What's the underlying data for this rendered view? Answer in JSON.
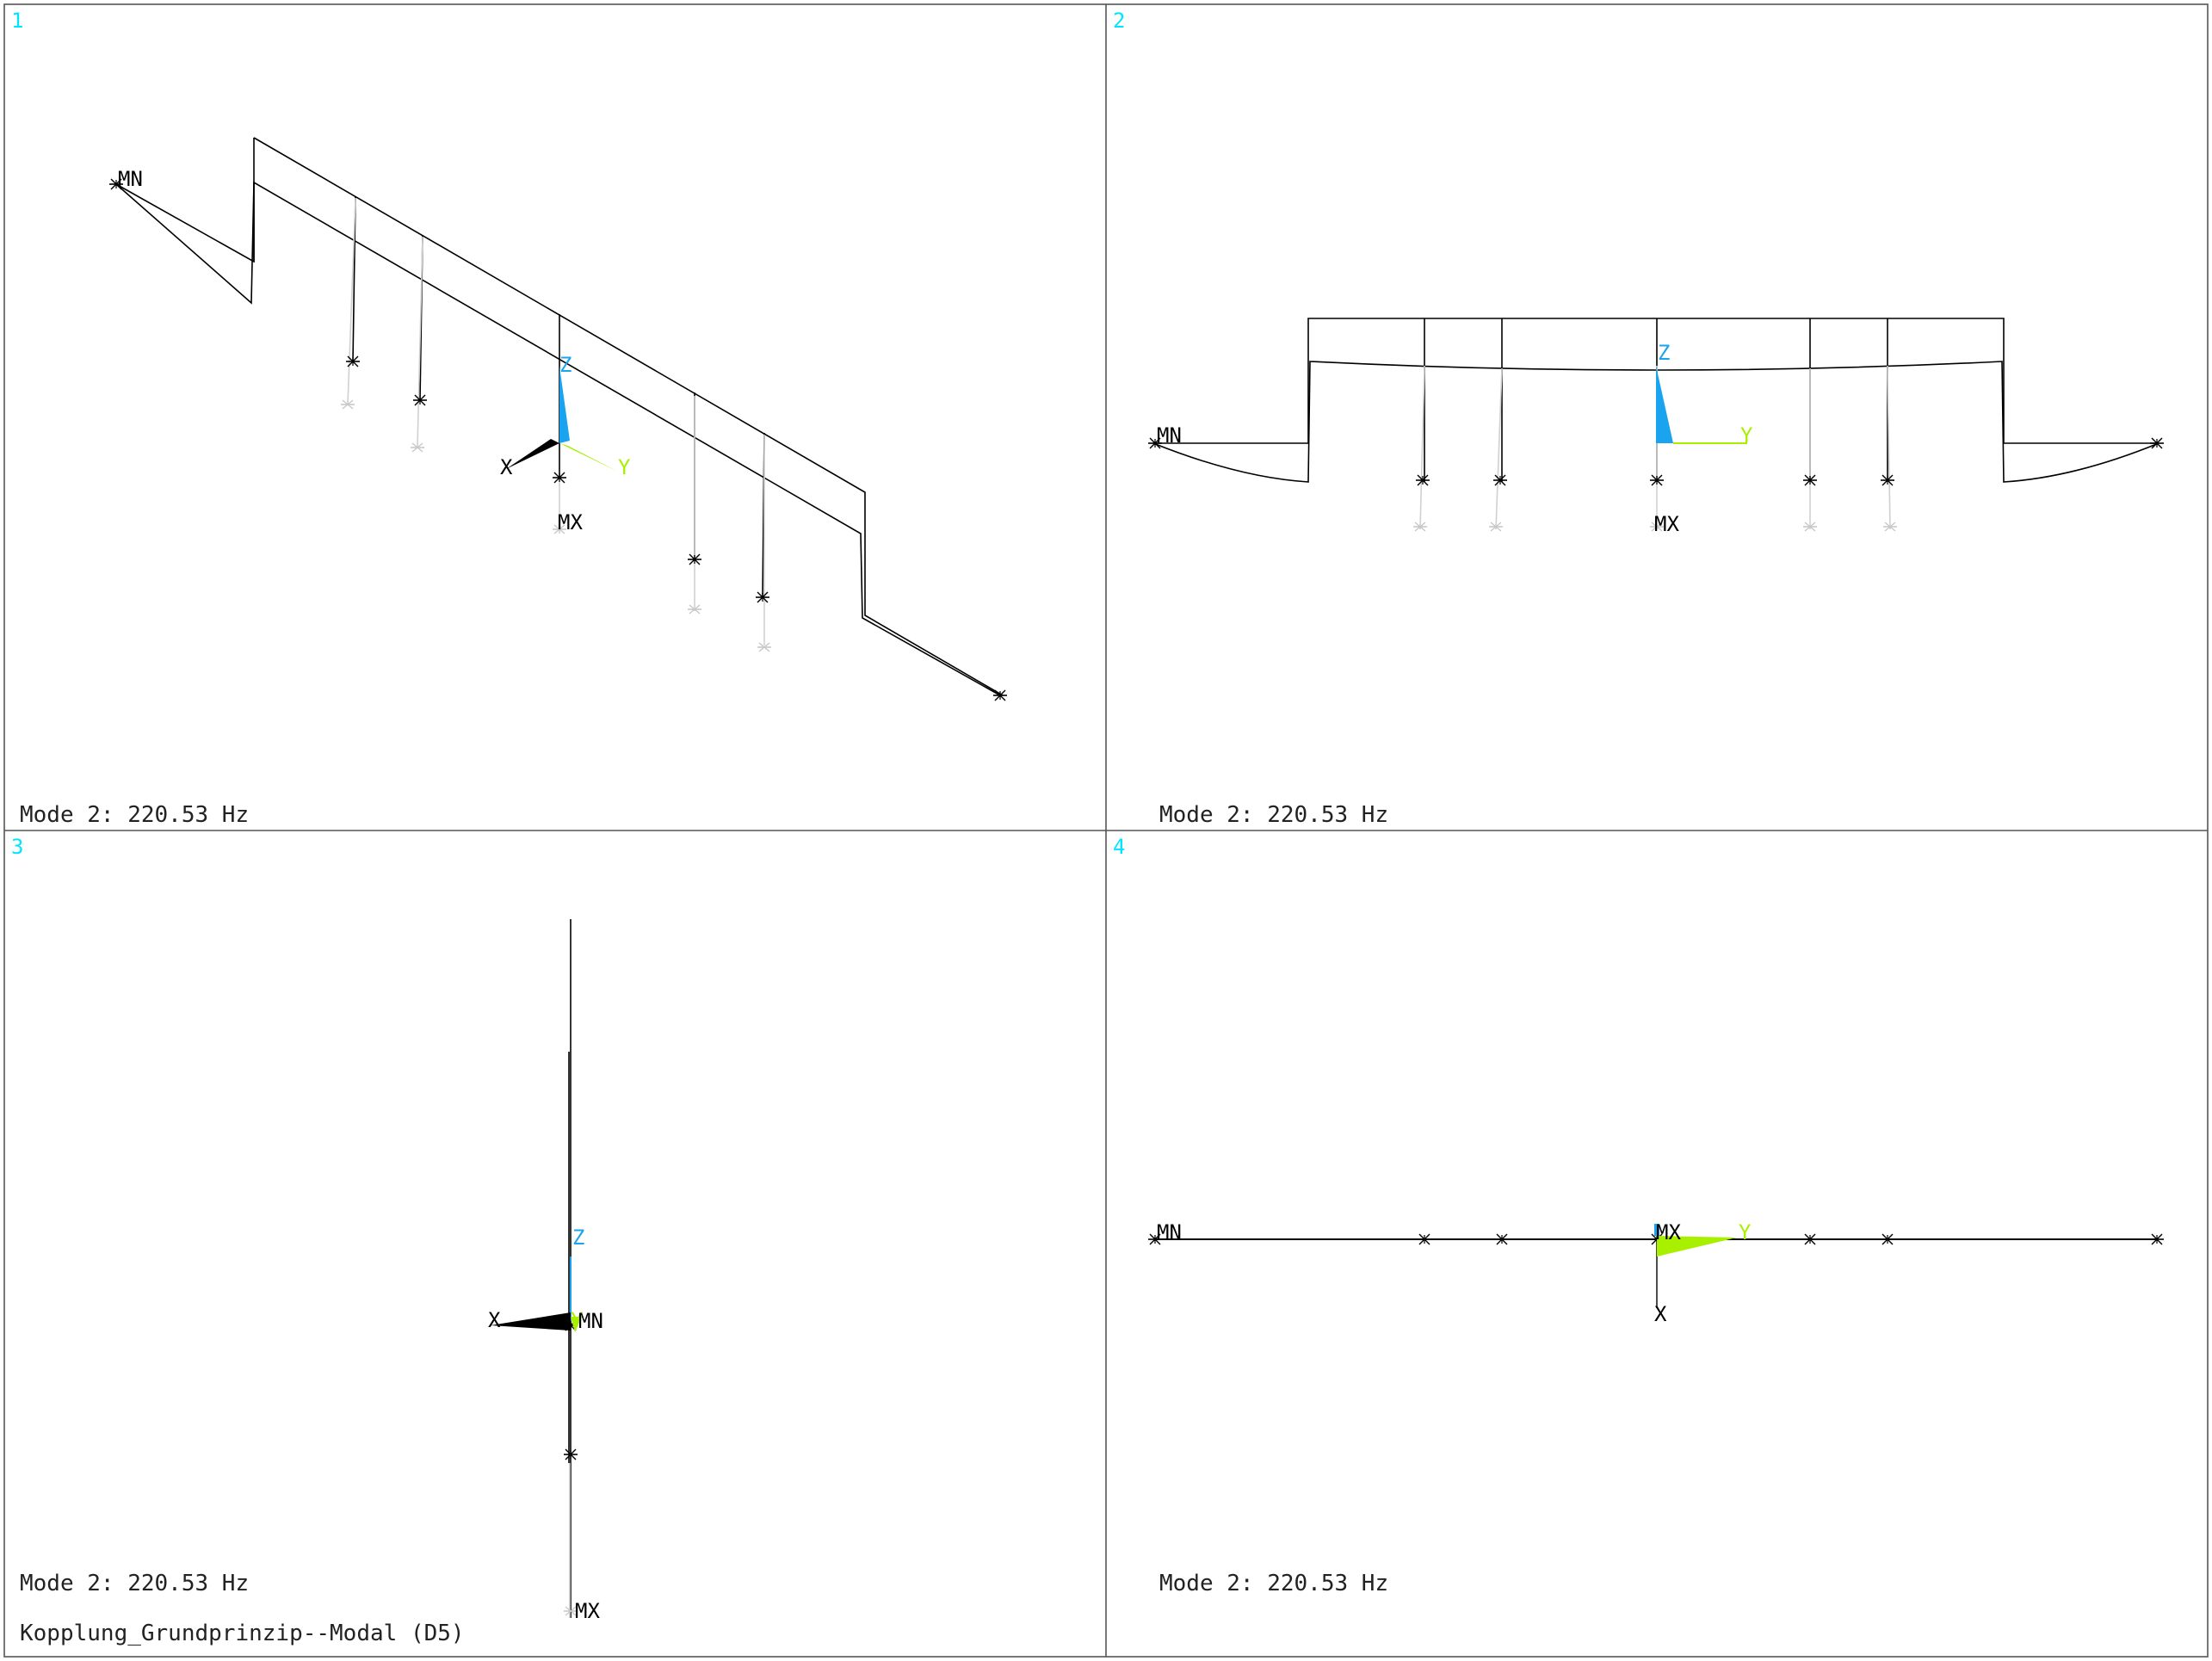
{
  "viewports": [
    {
      "number": "1",
      "mode_label": "Mode 2: 220.53 Hz",
      "min_label": "MN",
      "max_label": "MX",
      "axes": {
        "x": "X",
        "y": "Y",
        "z": "Z"
      }
    },
    {
      "number": "2",
      "mode_label": "Mode 2: 220.53 Hz",
      "min_label": "MN",
      "max_label": "MX",
      "axes": {
        "y": "Y",
        "z": "Z"
      }
    },
    {
      "number": "3",
      "mode_label": "Mode 2: 220.53 Hz",
      "min_label": "MN",
      "max_label": "MX",
      "axes": {
        "x": "X",
        "y": "Y",
        "z": "Z"
      }
    },
    {
      "number": "4",
      "mode_label": "Mode 2: 220.53 Hz",
      "min_label": "MN",
      "max_label": "MX",
      "axes": {
        "x": "X",
        "y": "Y"
      }
    }
  ],
  "model_title": "Kopplung_Grundprinzip--Modal (D5)",
  "colors": {
    "viewport_number": "#00e5ff",
    "z_axis": "#1aa3ee",
    "y_axis": "#a8f000",
    "x_axis": "#000000",
    "mesh": "#000000",
    "undeformed": "#c8c8c8"
  }
}
